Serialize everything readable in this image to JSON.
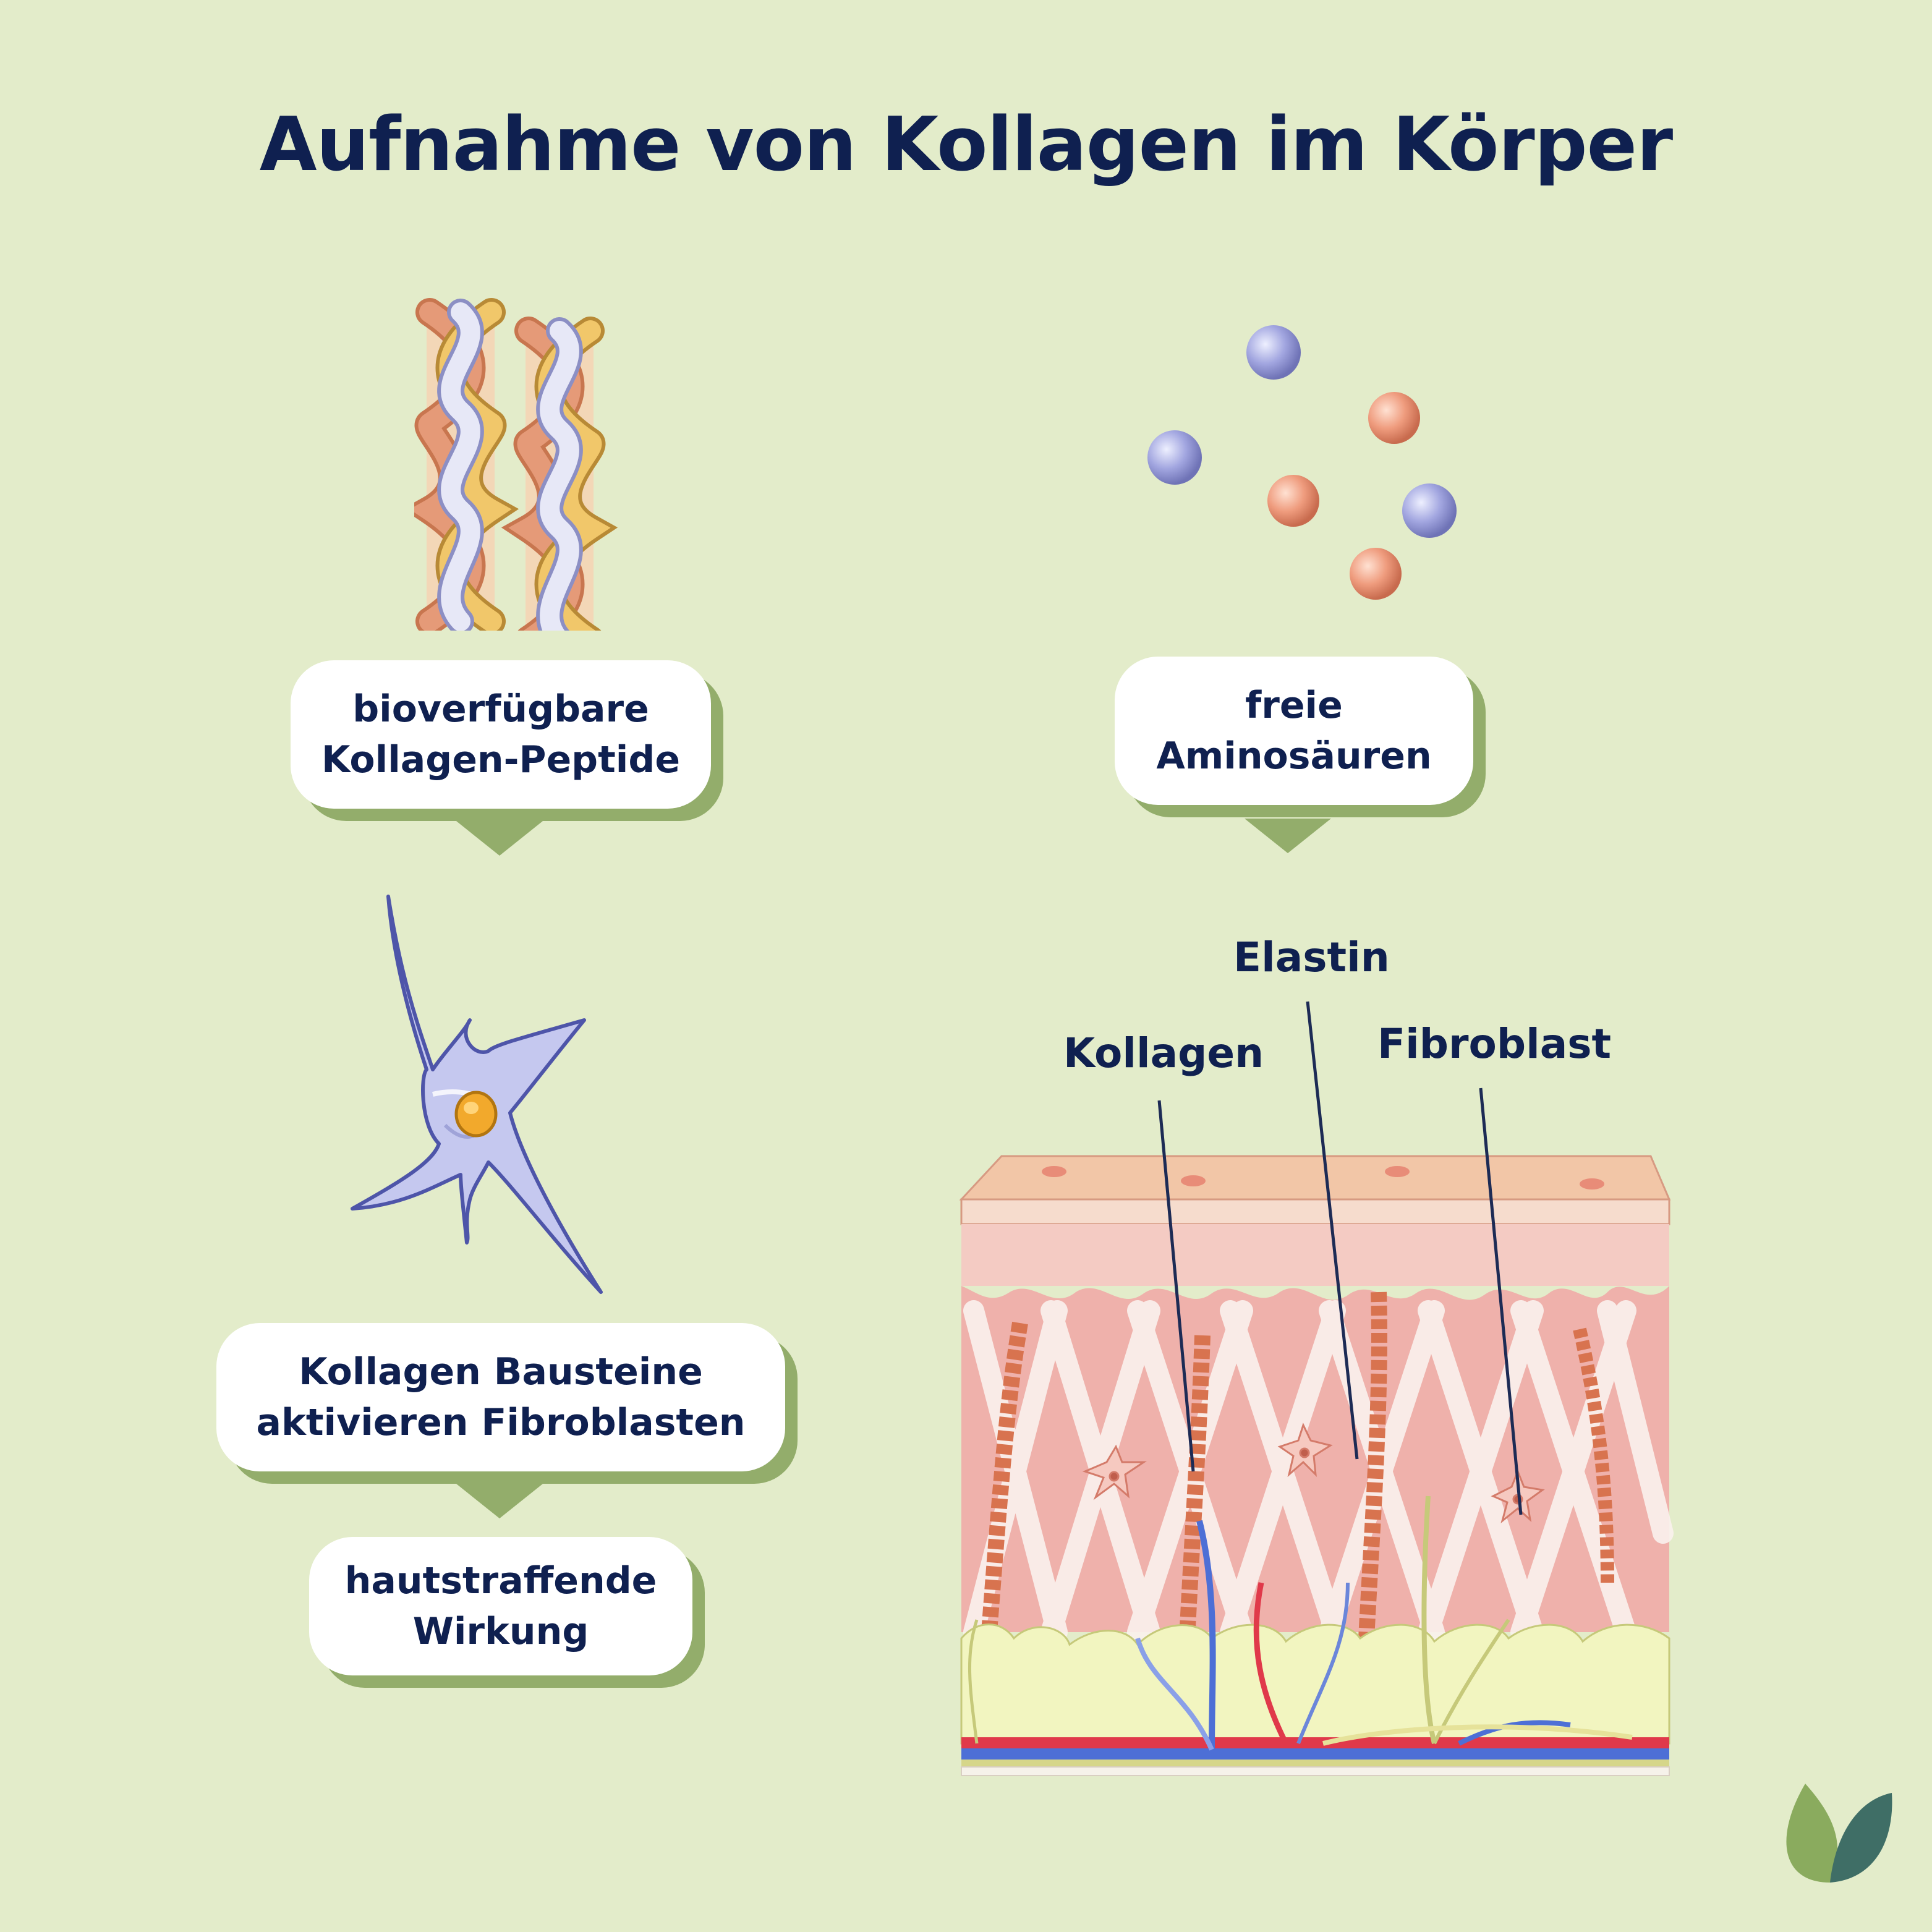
{
  "title": "Aufnahme von Kollagen im Körper",
  "steps": {
    "peptides": [
      "bioverfügbare",
      "Kollagen-Peptide"
    ],
    "amino": [
      "freie",
      "Aminosäuren"
    ],
    "building_blocks": [
      "Kollagen Bausteine",
      "aktivieren Fibroblasten"
    ],
    "effect": [
      "hautstraffende",
      "Wirkung"
    ]
  },
  "skin_labels": {
    "elastin": "Elastin",
    "collagen": "Kollagen",
    "fibroblast": "Fibroblast"
  },
  "colors": {
    "background": "#e3ecca",
    "text": "#0f2050",
    "shadow_green": "#93ad6b",
    "logo_light": "#8aab5e",
    "logo_dark": "#3f6e66"
  }
}
